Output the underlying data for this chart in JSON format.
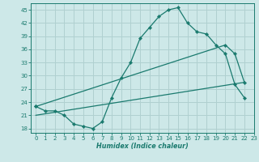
{
  "line1_x": [
    0,
    1,
    2,
    3,
    4,
    5,
    6,
    7,
    8,
    9,
    10,
    11,
    12,
    13,
    14,
    15,
    16,
    17,
    18,
    19,
    20,
    21,
    22
  ],
  "line1_y": [
    23,
    22,
    22,
    21,
    19,
    18.5,
    18,
    19.5,
    25,
    29.5,
    33,
    38.5,
    41,
    43.5,
    45,
    45.5,
    42,
    40,
    39.5,
    37,
    35,
    28,
    25
  ],
  "line2_x": [
    0,
    20,
    21,
    22
  ],
  "line2_y": [
    23,
    37,
    35,
    28.5
  ],
  "line3_x": [
    0,
    22
  ],
  "line3_y": [
    21,
    28.5
  ],
  "color": "#1a7a6e",
  "bg_color": "#cde8e8",
  "grid_color": "#b0d0d0",
  "xlabel": "Humidex (Indice chaleur)",
  "xlim": [
    -0.5,
    23
  ],
  "ylim": [
    17,
    46.5
  ],
  "yticks": [
    18,
    21,
    24,
    27,
    30,
    33,
    36,
    39,
    42,
    45
  ],
  "xticks": [
    0,
    1,
    2,
    3,
    4,
    5,
    6,
    7,
    8,
    9,
    10,
    11,
    12,
    13,
    14,
    15,
    16,
    17,
    18,
    19,
    20,
    21,
    22,
    23
  ]
}
